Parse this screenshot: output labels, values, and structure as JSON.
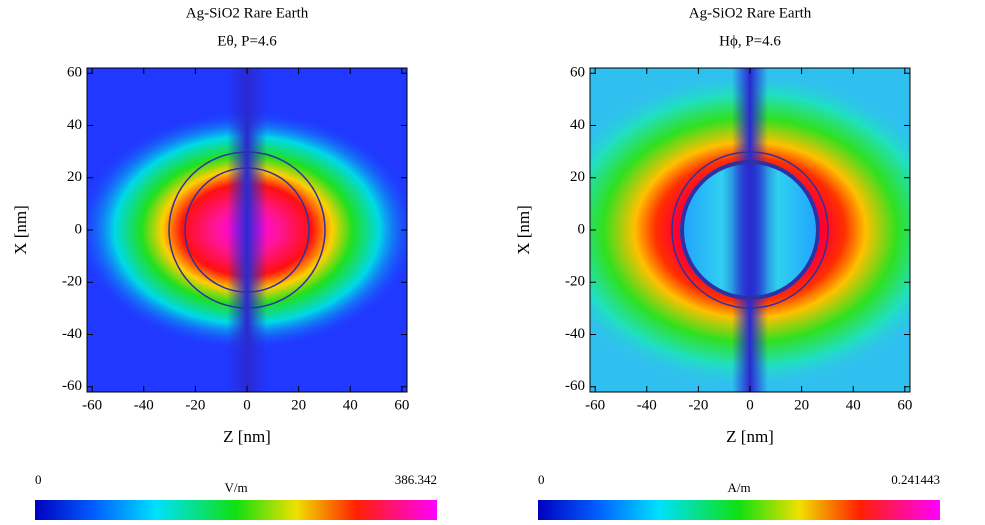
{
  "chart_data": [
    {
      "type": "field-map",
      "title": "Ag-SiO2 Rare Earth",
      "subtitle": "Eθ,  P=4.6",
      "x_label": "Z [nm]",
      "y_label": "X [nm]",
      "xlim": [
        -62,
        62
      ],
      "ylim": [
        -62,
        62
      ],
      "xticks": [
        -60,
        -40,
        -20,
        0,
        20,
        40,
        60
      ],
      "yticks": [
        -60,
        -40,
        -20,
        0,
        20,
        40,
        60
      ],
      "colorbar": {
        "min": 0,
        "max": 386.342,
        "unit": "V/m"
      }
    },
    {
      "type": "field-map",
      "title": "Ag-SiO2 Rare Earth",
      "subtitle": "Hϕ,  P=4.6",
      "x_label": "Z [nm]",
      "y_label": "X [nm]",
      "xlim": [
        -62,
        62
      ],
      "ylim": [
        -62,
        62
      ],
      "xticks": [
        -60,
        -40,
        -20,
        0,
        20,
        40,
        60
      ],
      "yticks": [
        -60,
        -40,
        -20,
        0,
        20,
        40,
        60
      ],
      "colorbar": {
        "min": 0,
        "max": 0.241443,
        "unit": "A/m"
      }
    }
  ]
}
